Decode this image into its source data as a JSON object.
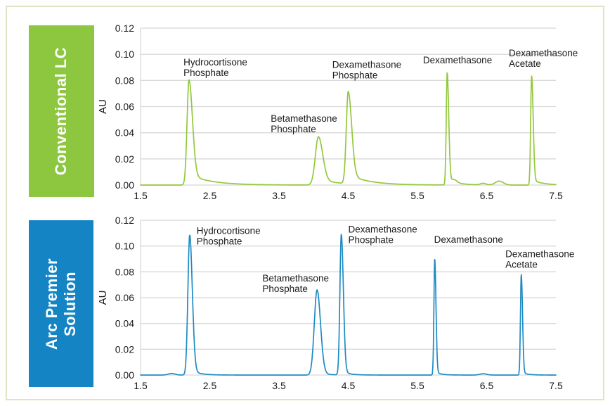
{
  "page": {
    "background": "#ffffff",
    "border_color": "#dfe3c3",
    "text_color": "#1a1a1a",
    "grid_color": "#d8d8d8"
  },
  "panels": [
    {
      "label": "Conventional LC",
      "label_lines": [
        "Conventional LC"
      ],
      "bg_color": "#8dc63f",
      "text_color": "#ffffff"
    },
    {
      "label": "Arc Premier Solution",
      "label_lines": [
        "Arc Premier",
        "Solution"
      ],
      "bg_color": "#1484c5",
      "text_color": "#ffffff"
    }
  ],
  "chart_data": [
    {
      "type": "line",
      "title": "Conventional LC",
      "ylabel": "AU",
      "xlabel": "",
      "xlim": [
        1.5,
        7.5
      ],
      "ylim": [
        0,
        0.12
      ],
      "xticks": [
        1.5,
        2.5,
        3.5,
        4.5,
        5.5,
        6.5,
        7.5
      ],
      "xtick_labels": [
        "1.5",
        "2.5",
        "3.5",
        "4.5",
        "5.5",
        "6.5",
        "7.5"
      ],
      "yticks": [
        0,
        0.02,
        0.04,
        0.06,
        0.08,
        0.1,
        0.12
      ],
      "ytick_labels": [
        "0.00",
        "0.02",
        "0.04",
        "0.06",
        "0.08",
        "0.10",
        "0.12"
      ],
      "grid": "horizontal-only",
      "legend": "none",
      "line_color": "#94c83c",
      "peaks": [
        {
          "name": "Hydrocortisone Phosphate",
          "rt": 2.2,
          "height_au": 0.0805,
          "sl": 0.028,
          "sr": 0.05,
          "tail": 0.1,
          "tau": 0.32
        },
        {
          "name": "Betamethasone Phosphate",
          "rt": 4.07,
          "height_au": 0.037,
          "sl": 0.045,
          "sr": 0.062,
          "tail": 0.12,
          "tau": 0.3
        },
        {
          "name": "Dexamethasone Phosphate",
          "rt": 4.5,
          "height_au": 0.0705,
          "sl": 0.028,
          "sr": 0.05,
          "tail": 0.1,
          "tau": 0.3
        },
        {
          "name": "Dexamethasone",
          "rt": 5.93,
          "height_au": 0.086,
          "sl": 0.014,
          "sr": 0.022,
          "tail": 0.05,
          "tau": 0.15
        },
        {
          "name": "Dexamethasone Acetate",
          "rt": 7.15,
          "height_au": 0.0835,
          "sl": 0.014,
          "sr": 0.022,
          "tail": 0.05,
          "tau": 0.15
        },
        {
          "name": "baseline-bump",
          "rt": 6.03,
          "height_au": 0.002,
          "sl": 0.03,
          "sr": 0.04,
          "tail": 0,
          "tau": 0.1
        },
        {
          "name": "baseline-bump",
          "rt": 6.45,
          "height_au": 0.0012,
          "sl": 0.04,
          "sr": 0.04,
          "tail": 0,
          "tau": 0.1
        },
        {
          "name": "baseline-bump",
          "rt": 6.68,
          "height_au": 0.003,
          "sl": 0.055,
          "sr": 0.06,
          "tail": 0,
          "tau": 0.1
        }
      ],
      "annotations": [
        {
          "lines": [
            "Hydrocortisone",
            "Phosphate"
          ],
          "x": 2.12,
          "y": 0.098
        },
        {
          "lines": [
            "Betamethasone",
            "Phosphate"
          ],
          "x": 3.38,
          "y": 0.055
        },
        {
          "lines": [
            "Dexamethasone",
            "Phosphate"
          ],
          "x": 4.27,
          "y": 0.096
        },
        {
          "lines": [
            "Dexamethasone"
          ],
          "x": 5.58,
          "y": 0.0995
        },
        {
          "lines": [
            "Dexamethasone",
            "Acetate"
          ],
          "x": 6.82,
          "y": 0.105
        }
      ]
    },
    {
      "type": "line",
      "title": "Arc Premier Solution",
      "ylabel": "AU",
      "xlabel": "",
      "xlim": [
        1.5,
        7.5
      ],
      "ylim": [
        0,
        0.12
      ],
      "xticks": [
        1.5,
        2.5,
        3.5,
        4.5,
        5.5,
        6.5,
        7.5
      ],
      "xtick_labels": [
        "1.5",
        "2.5",
        "3.5",
        "4.5",
        "5.5",
        "6.5",
        "7.5"
      ],
      "yticks": [
        0,
        0.02,
        0.04,
        0.06,
        0.08,
        0.1,
        0.12
      ],
      "ytick_labels": [
        "0.00",
        "0.02",
        "0.04",
        "0.06",
        "0.08",
        "0.10",
        "0.12"
      ],
      "grid": "horizontal-only",
      "legend": "none",
      "line_color": "#1e8bc3",
      "peaks": [
        {
          "name": "Hydrocortisone Phosphate",
          "rt": 2.21,
          "height_au": 0.1085,
          "sl": 0.026,
          "sr": 0.038,
          "tail": 0.04,
          "tau": 0.12
        },
        {
          "name": "Betamethasone Phosphate",
          "rt": 4.05,
          "height_au": 0.066,
          "sl": 0.04,
          "sr": 0.05,
          "tail": 0.03,
          "tau": 0.12
        },
        {
          "name": "Dexamethasone Phosphate",
          "rt": 4.4,
          "height_au": 0.109,
          "sl": 0.02,
          "sr": 0.03,
          "tail": 0.03,
          "tau": 0.1
        },
        {
          "name": "Dexamethasone",
          "rt": 5.75,
          "height_au": 0.09,
          "sl": 0.012,
          "sr": 0.018,
          "tail": 0.03,
          "tau": 0.08
        },
        {
          "name": "Dexamethasone Acetate",
          "rt": 7.0,
          "height_au": 0.078,
          "sl": 0.012,
          "sr": 0.018,
          "tail": 0.03,
          "tau": 0.08
        },
        {
          "name": "baseline-bump",
          "rt": 1.95,
          "height_au": 0.0012,
          "sl": 0.05,
          "sr": 0.05,
          "tail": 0,
          "tau": 0.1
        },
        {
          "name": "baseline-bump",
          "rt": 6.45,
          "height_au": 0.001,
          "sl": 0.05,
          "sr": 0.05,
          "tail": 0,
          "tau": 0.1
        }
      ],
      "annotations": [
        {
          "lines": [
            "Hydrocortisone",
            "Phosphate"
          ],
          "x": 2.31,
          "y": 0.116
        },
        {
          "lines": [
            "Betamethasone",
            "Phosphate"
          ],
          "x": 3.26,
          "y": 0.079
        },
        {
          "lines": [
            "Dexamethasone",
            "Phosphate"
          ],
          "x": 4.5,
          "y": 0.117
        },
        {
          "lines": [
            "Dexamethasone"
          ],
          "x": 5.74,
          "y": 0.109
        },
        {
          "lines": [
            "Dexamethasone",
            "Acetate"
          ],
          "x": 6.77,
          "y": 0.098
        }
      ]
    }
  ]
}
